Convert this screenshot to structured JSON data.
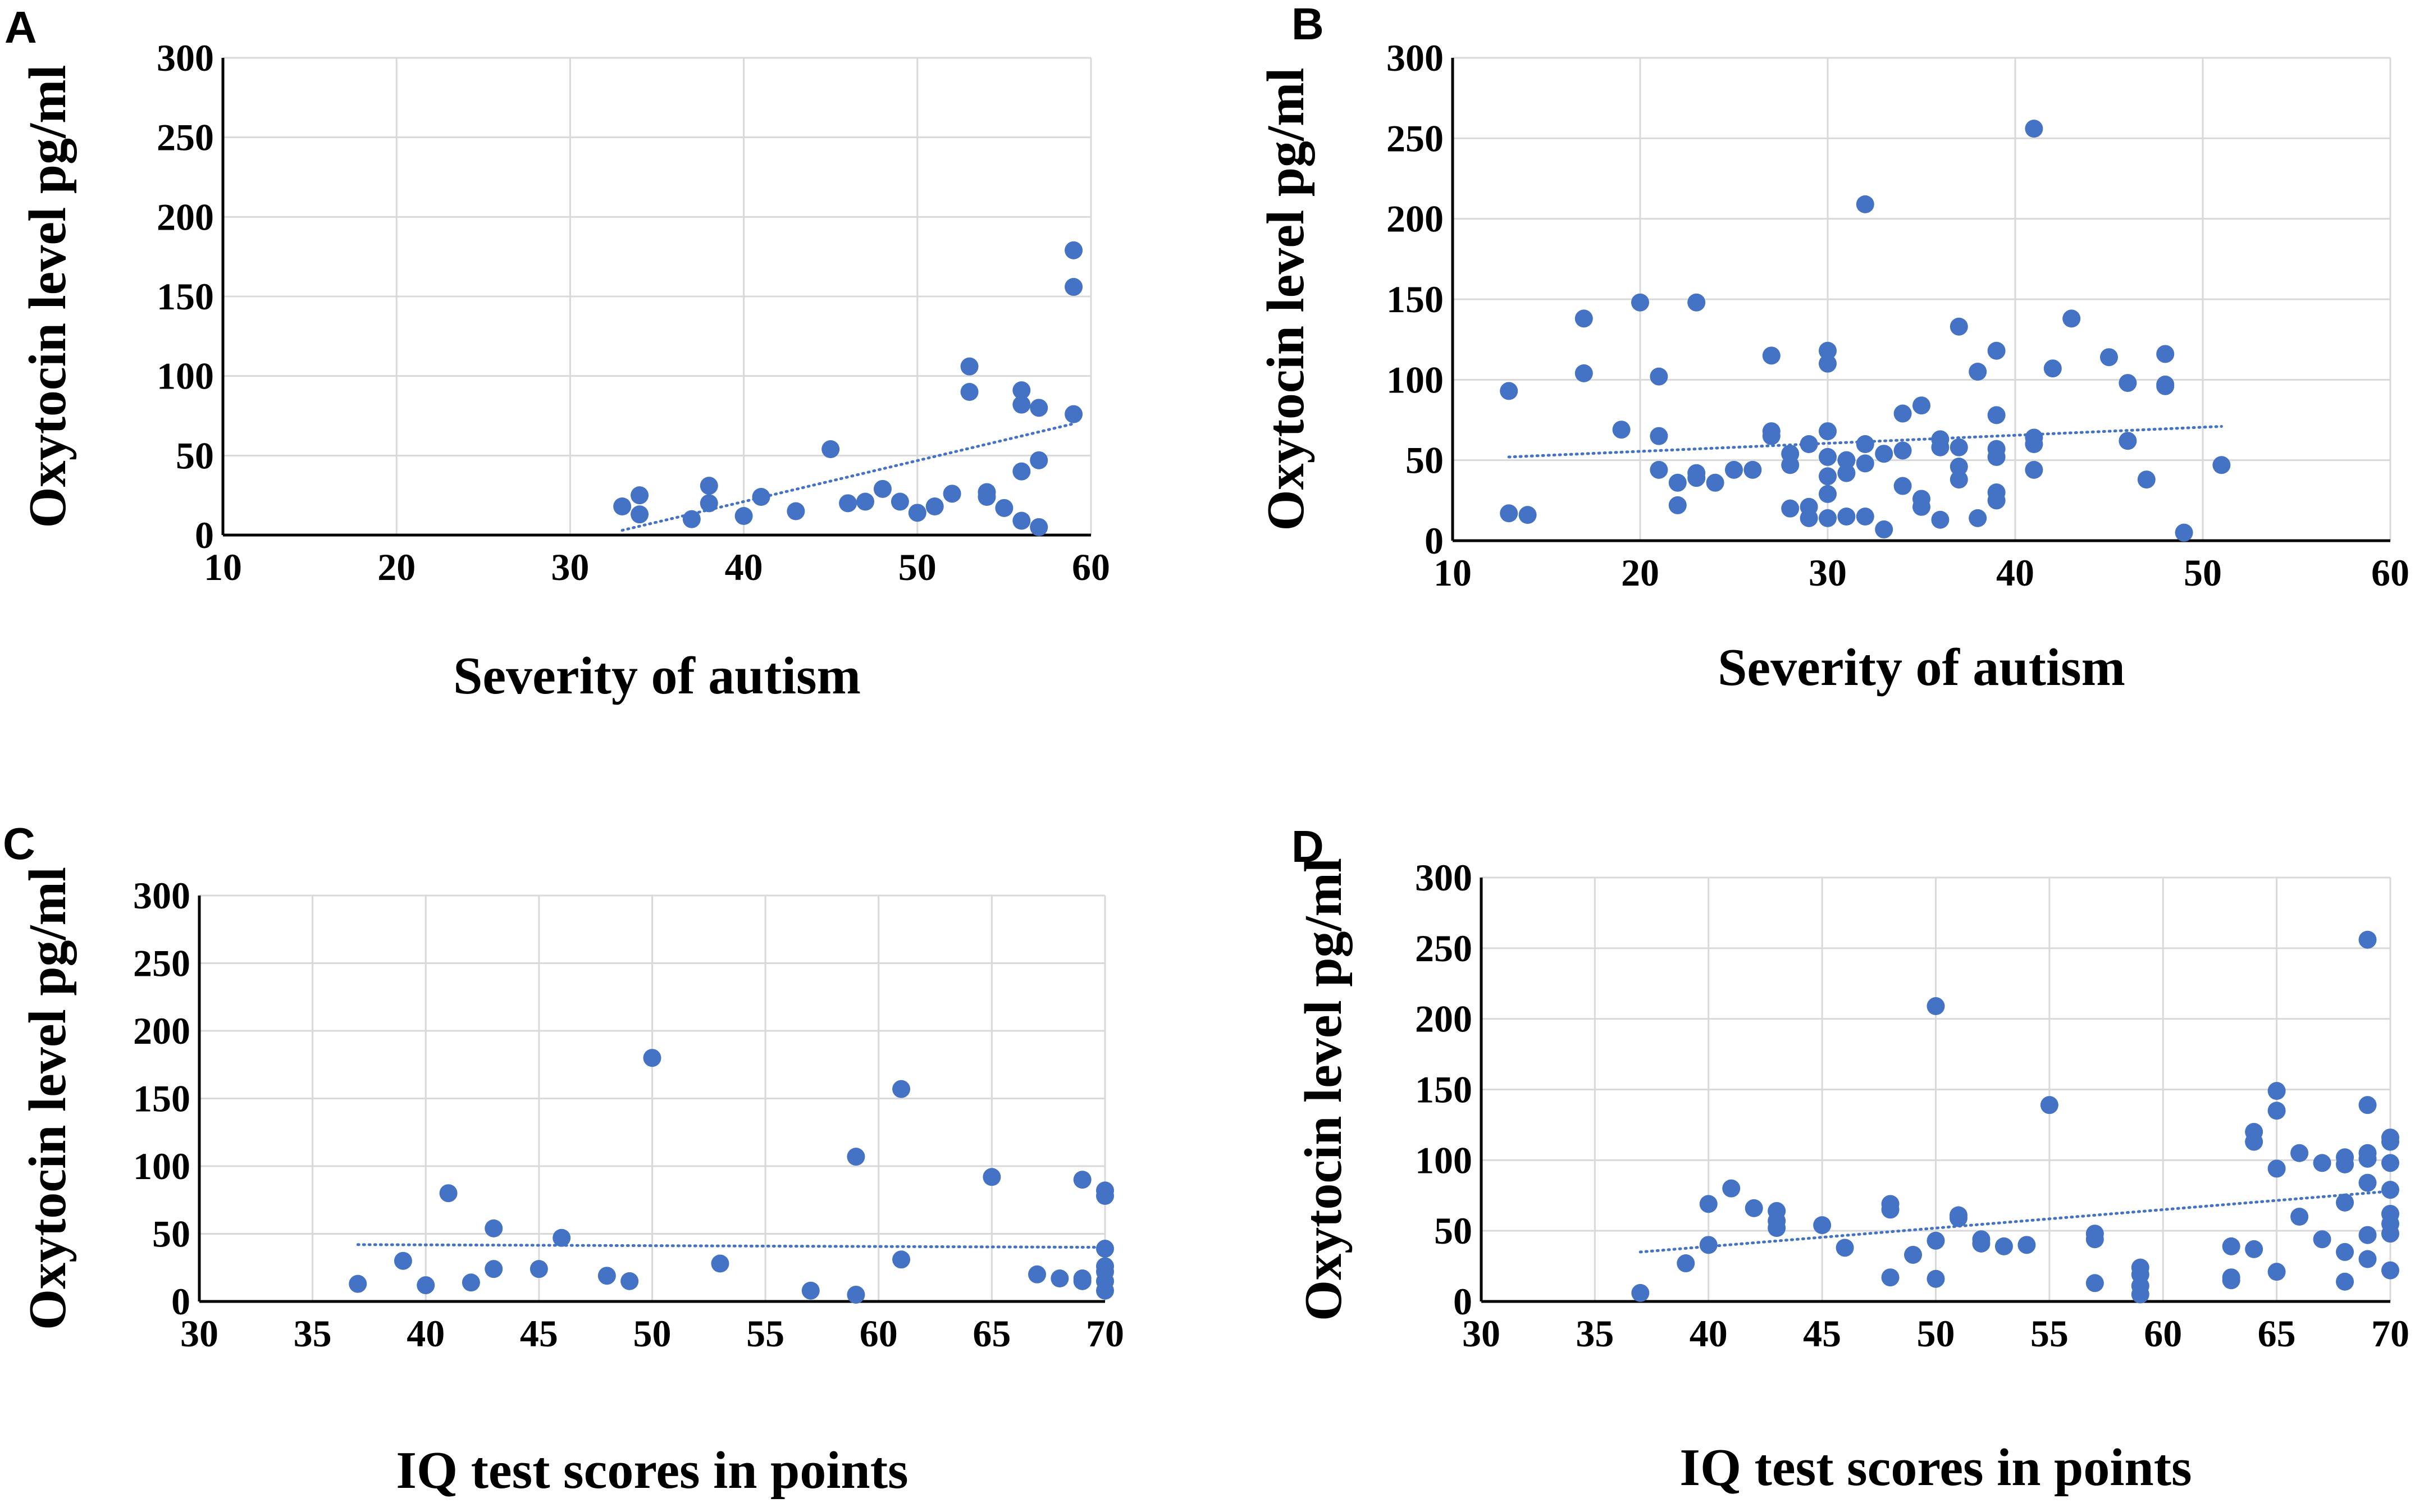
{
  "chart_data": [
    {
      "type": "scatter",
      "panel": "A",
      "title": "",
      "xlabel": "Severity of autism",
      "ylabel": "Oxytocin level pg/ml",
      "xlim": [
        10,
        60
      ],
      "ylim": [
        0,
        300
      ],
      "xticks": [
        10,
        20,
        30,
        40,
        50,
        60
      ],
      "yticks": [
        0,
        50,
        100,
        150,
        200,
        250,
        300
      ],
      "grid": true,
      "series": [
        {
          "name": "Oxytocin",
          "points": [
            [
              33,
              18
            ],
            [
              34,
              25
            ],
            [
              34,
              13
            ],
            [
              37,
              10
            ],
            [
              38,
              31
            ],
            [
              38,
              20
            ],
            [
              40,
              12
            ],
            [
              41,
              24
            ],
            [
              43,
              15
            ],
            [
              45,
              54
            ],
            [
              46,
              20
            ],
            [
              47,
              21
            ],
            [
              48,
              29
            ],
            [
              49,
              21
            ],
            [
              50,
              14
            ],
            [
              51,
              18
            ],
            [
              52,
              26
            ],
            [
              53,
              106
            ],
            [
              53,
              90
            ],
            [
              54,
              27
            ],
            [
              54,
              24
            ],
            [
              55,
              17
            ],
            [
              56,
              91
            ],
            [
              56,
              82
            ],
            [
              56,
              40
            ],
            [
              56,
              9
            ],
            [
              57,
              80
            ],
            [
              57,
              47
            ],
            [
              57,
              5
            ],
            [
              59,
              179
            ],
            [
              59,
              156
            ],
            [
              59,
              76
            ]
          ]
        }
      ],
      "trendline": {
        "x": [
          33,
          59
        ],
        "y": [
          3,
          70
        ]
      }
    },
    {
      "type": "scatter",
      "panel": "B",
      "title": "",
      "xlabel": "Severity of autism",
      "ylabel": "Oxytocin level pg/ml",
      "xlim": [
        10,
        60
      ],
      "ylim": [
        0,
        300
      ],
      "xticks": [
        10,
        20,
        30,
        40,
        50,
        60
      ],
      "yticks": [
        0,
        50,
        100,
        150,
        200,
        250,
        300
      ],
      "grid": true,
      "series": [
        {
          "name": "Oxytocin",
          "points": [
            [
              13,
              93
            ],
            [
              13,
              17
            ],
            [
              14,
              16
            ],
            [
              17,
              138
            ],
            [
              17,
              104
            ],
            [
              19,
              69
            ],
            [
              20,
              148
            ],
            [
              21,
              102
            ],
            [
              21,
              65
            ],
            [
              21,
              44
            ],
            [
              22,
              36
            ],
            [
              22,
              22
            ],
            [
              23,
              148
            ],
            [
              23,
              42
            ],
            [
              23,
              39
            ],
            [
              24,
              36
            ],
            [
              25,
              44
            ],
            [
              26,
              44
            ],
            [
              27,
              115
            ],
            [
              27,
              68
            ],
            [
              27,
              65
            ],
            [
              28,
              54
            ],
            [
              28,
              47
            ],
            [
              28,
              20
            ],
            [
              29,
              60
            ],
            [
              29,
              21
            ],
            [
              29,
              14
            ],
            [
              30,
              118
            ],
            [
              30,
              110
            ],
            [
              30,
              68
            ],
            [
              30,
              52
            ],
            [
              30,
              40
            ],
            [
              30,
              29
            ],
            [
              30,
              14
            ],
            [
              31,
              50
            ],
            [
              31,
              42
            ],
            [
              31,
              15
            ],
            [
              32,
              209
            ],
            [
              32,
              60
            ],
            [
              32,
              48
            ],
            [
              32,
              15
            ],
            [
              33,
              54
            ],
            [
              33,
              7
            ],
            [
              34,
              79
            ],
            [
              34,
              56
            ],
            [
              34,
              34
            ],
            [
              35,
              84
            ],
            [
              35,
              26
            ],
            [
              35,
              21
            ],
            [
              36,
              63
            ],
            [
              36,
              58
            ],
            [
              36,
              13
            ],
            [
              37,
              133
            ],
            [
              37,
              58
            ],
            [
              37,
              46
            ],
            [
              37,
              38
            ],
            [
              38,
              105
            ],
            [
              38,
              14
            ],
            [
              39,
              118
            ],
            [
              39,
              78
            ],
            [
              39,
              57
            ],
            [
              39,
              52
            ],
            [
              39,
              30
            ],
            [
              39,
              25
            ],
            [
              41,
              256
            ],
            [
              41,
              64
            ],
            [
              41,
              60
            ],
            [
              41,
              44
            ],
            [
              42,
              107
            ],
            [
              43,
              138
            ],
            [
              45,
              114
            ],
            [
              46,
              98
            ],
            [
              46,
              62
            ],
            [
              47,
              38
            ],
            [
              48,
              116
            ],
            [
              48,
              97
            ],
            [
              48,
              96
            ],
            [
              49,
              5
            ],
            [
              51,
              47
            ]
          ]
        }
      ],
      "trendline": {
        "x": [
          13,
          51
        ],
        "y": [
          52,
          71
        ]
      }
    },
    {
      "type": "scatter",
      "panel": "C",
      "title": "",
      "xlabel": "IQ test scores in points",
      "ylabel": "Oxytocin level pg/ml",
      "xlim": [
        30,
        70
      ],
      "ylim": [
        0,
        300
      ],
      "xticks": [
        30,
        35,
        40,
        45,
        50,
        55,
        60,
        65,
        70
      ],
      "yticks": [
        0,
        50,
        100,
        150,
        200,
        250,
        300
      ],
      "grid": true,
      "series": [
        {
          "name": "Oxytocin",
          "points": [
            [
              37,
              13
            ],
            [
              39,
              30
            ],
            [
              40,
              12
            ],
            [
              41,
              80
            ],
            [
              42,
              14
            ],
            [
              43,
              54
            ],
            [
              43,
              24
            ],
            [
              45,
              24
            ],
            [
              46,
              47
            ],
            [
              48,
              19
            ],
            [
              49,
              15
            ],
            [
              50,
              180
            ],
            [
              53,
              28
            ],
            [
              57,
              8
            ],
            [
              59,
              107
            ],
            [
              59,
              5
            ],
            [
              61,
              157
            ],
            [
              61,
              31
            ],
            [
              65,
              92
            ],
            [
              67,
              20
            ],
            [
              68,
              17
            ],
            [
              69,
              90
            ],
            [
              69,
              17
            ],
            [
              69,
              15
            ],
            [
              70,
              82
            ],
            [
              70,
              78
            ],
            [
              70,
              39
            ],
            [
              70,
              26
            ],
            [
              70,
              22
            ],
            [
              70,
              15
            ],
            [
              70,
              8
            ]
          ]
        }
      ],
      "trendline": {
        "x": [
          37,
          70
        ],
        "y": [
          42,
          40
        ]
      }
    },
    {
      "type": "scatter",
      "panel": "D",
      "title": "",
      "xlabel": "IQ test scores in points",
      "ylabel": "Oxytocin level pg/ml",
      "xlim": [
        30,
        70
      ],
      "ylim": [
        0,
        300
      ],
      "xticks": [
        30,
        35,
        40,
        45,
        50,
        55,
        60,
        65,
        70
      ],
      "yticks": [
        0,
        50,
        100,
        150,
        200,
        250,
        300
      ],
      "grid": true,
      "series": [
        {
          "name": "Oxytocin",
          "points": [
            [
              37,
              6
            ],
            [
              39,
              27
            ],
            [
              40,
              69
            ],
            [
              40,
              40
            ],
            [
              41,
              80
            ],
            [
              42,
              66
            ],
            [
              43,
              64
            ],
            [
              43,
              57
            ],
            [
              43,
              52
            ],
            [
              45,
              54
            ],
            [
              46,
              38
            ],
            [
              48,
              69
            ],
            [
              48,
              65
            ],
            [
              48,
              17
            ],
            [
              49,
              33
            ],
            [
              50,
              209
            ],
            [
              50,
              43
            ],
            [
              50,
              16
            ],
            [
              51,
              61
            ],
            [
              51,
              59
            ],
            [
              52,
              44
            ],
            [
              52,
              41
            ],
            [
              53,
              39
            ],
            [
              54,
              40
            ],
            [
              55,
              139
            ],
            [
              57,
              48
            ],
            [
              57,
              44
            ],
            [
              57,
              13
            ],
            [
              59,
              24
            ],
            [
              59,
              19
            ],
            [
              59,
              11
            ],
            [
              59,
              5
            ],
            [
              63,
              39
            ],
            [
              63,
              17
            ],
            [
              63,
              15
            ],
            [
              64,
              120
            ],
            [
              64,
              113
            ],
            [
              64,
              37
            ],
            [
              65,
              149
            ],
            [
              65,
              135
            ],
            [
              65,
              94
            ],
            [
              65,
              21
            ],
            [
              66,
              105
            ],
            [
              66,
              60
            ],
            [
              67,
              98
            ],
            [
              67,
              44
            ],
            [
              68,
              102
            ],
            [
              68,
              97
            ],
            [
              68,
              70
            ],
            [
              68,
              35
            ],
            [
              68,
              14
            ],
            [
              69,
              256
            ],
            [
              69,
              139
            ],
            [
              69,
              105
            ],
            [
              69,
              101
            ],
            [
              69,
              84
            ],
            [
              69,
              47
            ],
            [
              69,
              30
            ],
            [
              70,
              116
            ],
            [
              70,
              113
            ],
            [
              70,
              98
            ],
            [
              70,
              79
            ],
            [
              70,
              62
            ],
            [
              70,
              55
            ],
            [
              70,
              48
            ],
            [
              70,
              22
            ]
          ]
        }
      ],
      "trendline": {
        "x": [
          37,
          70
        ],
        "y": [
          35,
          78
        ]
      }
    }
  ]
}
